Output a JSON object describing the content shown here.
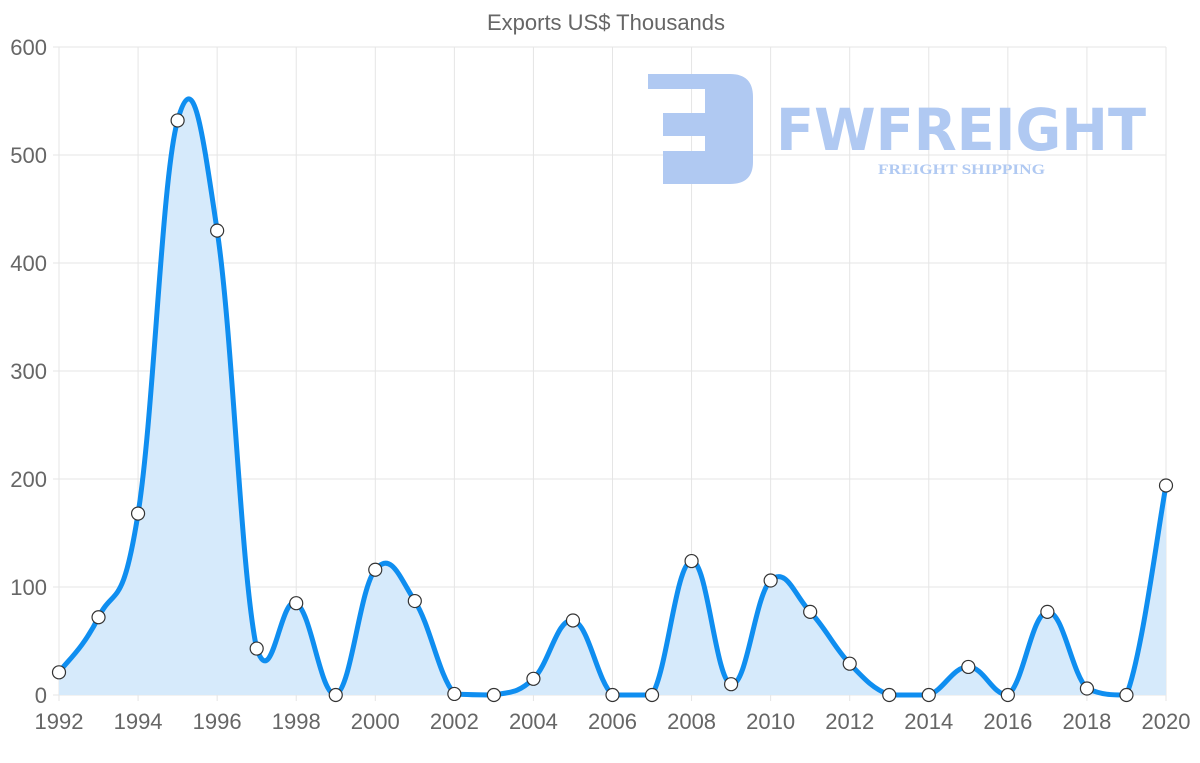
{
  "chart_data": {
    "type": "line",
    "title": "Exports US$ Thousands",
    "xlabel": "",
    "ylabel": "",
    "x": [
      1992,
      1993,
      1994,
      1995,
      1996,
      1997,
      1998,
      1999,
      2000,
      2001,
      2002,
      2003,
      2004,
      2005,
      2006,
      2007,
      2008,
      2009,
      2010,
      2011,
      2012,
      2013,
      2014,
      2015,
      2016,
      2017,
      2018,
      2019,
      2020
    ],
    "series": [
      {
        "name": "Exports US$ Thousands",
        "values": [
          21,
          72,
          168,
          532,
          430,
          43,
          85,
          0,
          116,
          87,
          1,
          0,
          15,
          69,
          0,
          0,
          124,
          10,
          106,
          77,
          29,
          0,
          0,
          26,
          0,
          77,
          6,
          0,
          194
        ]
      }
    ],
    "x_ticks": [
      "1992",
      "1994",
      "1996",
      "1998",
      "2000",
      "2002",
      "2004",
      "2006",
      "2008",
      "2010",
      "2012",
      "2014",
      "2016",
      "2018",
      "2020"
    ],
    "y_ticks": [
      "0",
      "100",
      "200",
      "300",
      "400",
      "500",
      "600"
    ],
    "ylim": [
      0,
      600
    ],
    "xlim": [
      1992,
      2020
    ],
    "grid": true,
    "fill": true,
    "colors": {
      "line": "#0f8ef0",
      "fill": "#d6eafb",
      "grid": "#e5e5e5",
      "point": "#ffffff"
    }
  },
  "watermark": {
    "brand": "FWFREIGHT",
    "tagline": "FREIGHT SHIPPING",
    "color": "#b0c9f2"
  }
}
